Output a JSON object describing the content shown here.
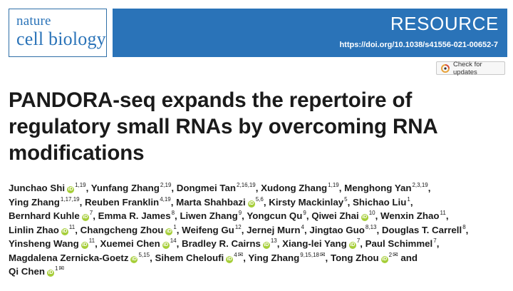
{
  "journal": {
    "line1": "nature",
    "line2": "cell biology"
  },
  "banner": {
    "type": "RESOURCE",
    "doi": "https://doi.org/10.1038/s41556-021-00652-7"
  },
  "check_updates_label": "Check for updates",
  "title": "PANDORA-seq expands the repertoire of regulatory small RNAs by overcoming RNA modifications",
  "authors": [
    {
      "name": "Junchao Shi",
      "orcid": true,
      "aff": "1,19"
    },
    {
      "name": "Yunfang Zhang",
      "orcid": false,
      "aff": "2,19"
    },
    {
      "name": "Dongmei Tan",
      "orcid": false,
      "aff": "2,16,19"
    },
    {
      "name": "Xudong Zhang",
      "orcid": false,
      "aff": "1,19"
    },
    {
      "name": "Menghong Yan",
      "orcid": false,
      "aff": "2,3,19"
    },
    {
      "name": "Ying Zhang",
      "orcid": false,
      "aff": "1,17,19",
      "br": true
    },
    {
      "name": "Reuben Franklin",
      "orcid": false,
      "aff": "4,19"
    },
    {
      "name": "Marta Shahbazi",
      "orcid": true,
      "aff": "5,6"
    },
    {
      "name": "Kirsty Mackinlay",
      "orcid": false,
      "aff": "5"
    },
    {
      "name": "Shichao Liu",
      "orcid": false,
      "aff": "1"
    },
    {
      "name": "Bernhard Kuhle",
      "orcid": true,
      "aff": "7",
      "br": true
    },
    {
      "name": "Emma R. James",
      "orcid": false,
      "aff": "8"
    },
    {
      "name": "Liwen Zhang",
      "orcid": false,
      "aff": "9"
    },
    {
      "name": "Yongcun Qu",
      "orcid": false,
      "aff": "9"
    },
    {
      "name": "Qiwei Zhai",
      "orcid": true,
      "aff": "10"
    },
    {
      "name": "Wenxin Zhao",
      "orcid": false,
      "aff": "11"
    },
    {
      "name": "Linlin Zhao",
      "orcid": true,
      "aff": "11",
      "br": true
    },
    {
      "name": "Changcheng Zhou",
      "orcid": true,
      "aff": "1"
    },
    {
      "name": "Weifeng Gu",
      "orcid": false,
      "aff": "12"
    },
    {
      "name": "Jernej Murn",
      "orcid": false,
      "aff": "4"
    },
    {
      "name": "Jingtao Guo",
      "orcid": false,
      "aff": "8,13"
    },
    {
      "name": "Douglas T. Carrell",
      "orcid": false,
      "aff": "8"
    },
    {
      "name": "Yinsheng Wang",
      "orcid": true,
      "aff": "11",
      "br": true
    },
    {
      "name": "Xuemei Chen",
      "orcid": true,
      "aff": "14"
    },
    {
      "name": "Bradley R. Cairns",
      "orcid": true,
      "aff": "13"
    },
    {
      "name": "Xiang-lei Yang",
      "orcid": true,
      "aff": "7"
    },
    {
      "name": "Paul Schimmel",
      "orcid": false,
      "aff": "7"
    },
    {
      "name": "Magdalena Zernicka-Goetz",
      "orcid": true,
      "aff": "5,15",
      "br": true
    },
    {
      "name": "Sihem Cheloufi",
      "orcid": true,
      "aff": "4",
      "corr": true
    },
    {
      "name": "Ying Zhang",
      "orcid": false,
      "aff": "9,15,18",
      "corr": true
    },
    {
      "name": "Tong Zhou",
      "orcid": true,
      "aff": "2",
      "corr": true,
      "last_sep": " and"
    },
    {
      "name": "Qi Chen",
      "orcid": true,
      "aff": "1",
      "corr": true,
      "br": true
    }
  ]
}
